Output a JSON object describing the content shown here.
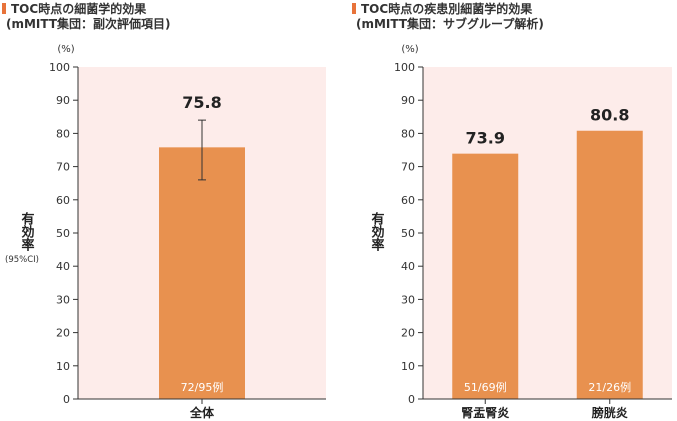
{
  "colors": {
    "bar": "#e8914f",
    "plot_bg": "#fdecea",
    "error_bar": "#333333",
    "title_marker": "#e8733a"
  },
  "chart_data": [
    {
      "type": "bar",
      "title": "TOC時点の細菌学的効果",
      "subtitle": "(mMITT集団：副次評価項目)",
      "unit": "(%)",
      "ylabel": "有効率",
      "ylabel_note": "(95%CI)",
      "ylim": [
        0,
        100
      ],
      "yticks": [
        0,
        10,
        20,
        30,
        40,
        50,
        60,
        70,
        80,
        90,
        100
      ],
      "categories": [
        "全体"
      ],
      "values": [
        75.8
      ],
      "value_labels": [
        "75.8"
      ],
      "counts": [
        "72/95例"
      ],
      "error": [
        {
          "low": 66.0,
          "high": 84.0
        }
      ]
    },
    {
      "type": "bar",
      "title": "TOC時点の疾患別細菌学的効果",
      "subtitle": "(mMITT集団：サブグループ解析)",
      "unit": "(%)",
      "ylabel": "有効率",
      "ylim": [
        0,
        100
      ],
      "yticks": [
        0,
        10,
        20,
        30,
        40,
        50,
        60,
        70,
        80,
        90,
        100
      ],
      "categories": [
        "腎盂腎炎",
        "膀胱炎"
      ],
      "values": [
        73.9,
        80.8
      ],
      "value_labels": [
        "73.9",
        "80.8"
      ],
      "counts": [
        "51/69例",
        "21/26例"
      ]
    }
  ]
}
